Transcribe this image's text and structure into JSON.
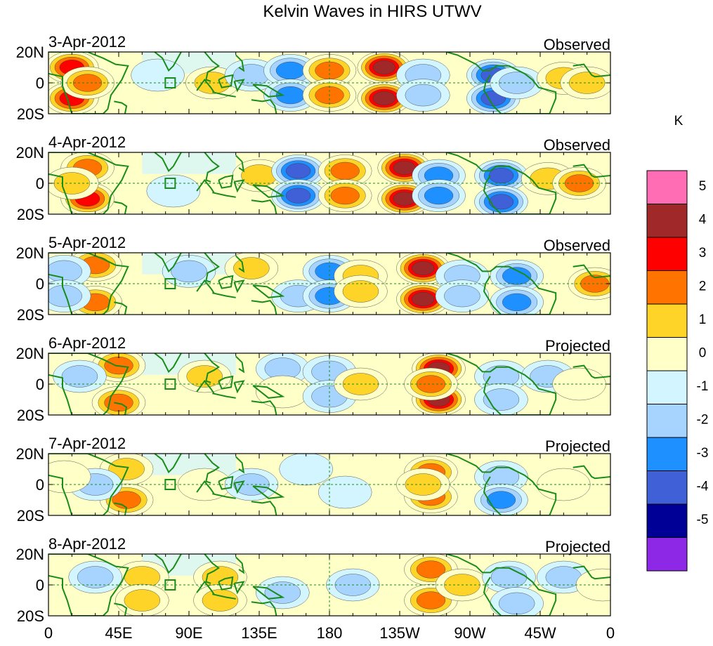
{
  "chart_data": {
    "type": "heatmap",
    "title": "Kelvin Waves in HIRS UTWV",
    "units": "K",
    "y_tick_labels": [
      "20N",
      "0",
      "20S"
    ],
    "y_range": [
      -20,
      20
    ],
    "x_tick_labels": [
      "0",
      "45E",
      "90E",
      "135E",
      "180",
      "135W",
      "90W",
      "45W",
      "0"
    ],
    "x_range": [
      0,
      360
    ],
    "colorbar": {
      "levels": [
        "5",
        "4",
        "3",
        "2",
        "1",
        "0",
        "-1",
        "-2",
        "-3",
        "-4",
        "-5"
      ],
      "colors": [
        "#ff6eb4",
        "#a02828",
        "#ff0000",
        "#ff7300",
        "#ffd428",
        "#ffffc8",
        "#d2f5ff",
        "#a6d4ff",
        "#1e90ff",
        "#4060d8",
        "#000096",
        "#8c28e6"
      ]
    },
    "panels": [
      {
        "date": "3-Apr-2012",
        "status": "Observed",
        "features": [
          {
            "lon": 15,
            "lat": 10,
            "v": 3.5
          },
          {
            "lon": 15,
            "lat": -10,
            "v": 3.5
          },
          {
            "lon": 25,
            "lat": 0,
            "v": 3
          },
          {
            "lon": 70,
            "lat": 5,
            "v": -1
          },
          {
            "lon": 105,
            "lat": 0,
            "v": 1.5
          },
          {
            "lon": 130,
            "lat": 5,
            "v": -1.5
          },
          {
            "lon": 155,
            "lat": 8,
            "v": -3
          },
          {
            "lon": 155,
            "lat": -8,
            "v": -3
          },
          {
            "lon": 180,
            "lat": 8,
            "v": 3
          },
          {
            "lon": 180,
            "lat": -8,
            "v": 3
          },
          {
            "lon": 215,
            "lat": 10,
            "v": 4.5
          },
          {
            "lon": 215,
            "lat": -10,
            "v": 4.5
          },
          {
            "lon": 240,
            "lat": 5,
            "v": -2
          },
          {
            "lon": 240,
            "lat": -8,
            "v": -2
          },
          {
            "lon": 285,
            "lat": 5,
            "v": -4
          },
          {
            "lon": 285,
            "lat": -10,
            "v": -4
          },
          {
            "lon": 300,
            "lat": 0,
            "v": -2
          },
          {
            "lon": 330,
            "lat": 3,
            "v": 1.5
          },
          {
            "lon": 345,
            "lat": 0,
            "v": 2
          }
        ]
      },
      {
        "date": "4-Apr-2012",
        "status": "Observed",
        "features": [
          {
            "lon": 25,
            "lat": 10,
            "v": 3
          },
          {
            "lon": 25,
            "lat": -10,
            "v": 3.5
          },
          {
            "lon": 15,
            "lat": 0,
            "v": 2
          },
          {
            "lon": 80,
            "lat": -5,
            "v": -1
          },
          {
            "lon": 135,
            "lat": 5,
            "v": 1.5
          },
          {
            "lon": 160,
            "lat": 8,
            "v": -3.5
          },
          {
            "lon": 160,
            "lat": -8,
            "v": -4
          },
          {
            "lon": 190,
            "lat": 8,
            "v": 3
          },
          {
            "lon": 190,
            "lat": -8,
            "v": 3
          },
          {
            "lon": 228,
            "lat": 10,
            "v": 5
          },
          {
            "lon": 228,
            "lat": -10,
            "v": 5
          },
          {
            "lon": 250,
            "lat": 5,
            "v": -2.5
          },
          {
            "lon": 250,
            "lat": -8,
            "v": -2.5
          },
          {
            "lon": 290,
            "lat": 5,
            "v": -3.5
          },
          {
            "lon": 290,
            "lat": -12,
            "v": -4
          },
          {
            "lon": 320,
            "lat": 3,
            "v": 1.5
          },
          {
            "lon": 340,
            "lat": 0,
            "v": 3
          }
        ]
      },
      {
        "date": "5-Apr-2012",
        "status": "Observed",
        "features": [
          {
            "lon": 30,
            "lat": 12,
            "v": 3
          },
          {
            "lon": 30,
            "lat": -12,
            "v": 3
          },
          {
            "lon": 10,
            "lat": 8,
            "v": -2
          },
          {
            "lon": 10,
            "lat": -8,
            "v": -2
          },
          {
            "lon": 90,
            "lat": 8,
            "v": -1.5
          },
          {
            "lon": 130,
            "lat": 10,
            "v": 1.5
          },
          {
            "lon": 160,
            "lat": -8,
            "v": -2
          },
          {
            "lon": 180,
            "lat": 8,
            "v": -3
          },
          {
            "lon": 180,
            "lat": -8,
            "v": -3
          },
          {
            "lon": 200,
            "lat": 5,
            "v": 2
          },
          {
            "lon": 200,
            "lat": -5,
            "v": 2
          },
          {
            "lon": 240,
            "lat": 10,
            "v": 4.5
          },
          {
            "lon": 240,
            "lat": -10,
            "v": 4.5
          },
          {
            "lon": 265,
            "lat": 5,
            "v": -2
          },
          {
            "lon": 265,
            "lat": -8,
            "v": -2
          },
          {
            "lon": 300,
            "lat": 5,
            "v": -3
          },
          {
            "lon": 300,
            "lat": -12,
            "v": -3
          },
          {
            "lon": 350,
            "lat": 0,
            "v": 2.5
          }
        ]
      },
      {
        "date": "6-Apr-2012",
        "status": "Projected",
        "features": [
          {
            "lon": 45,
            "lat": 12,
            "v": 2.5
          },
          {
            "lon": 45,
            "lat": -12,
            "v": 3
          },
          {
            "lon": 20,
            "lat": 5,
            "v": -1.5
          },
          {
            "lon": 100,
            "lat": 5,
            "v": 1.5
          },
          {
            "lon": 150,
            "lat": 10,
            "v": -2
          },
          {
            "lon": 150,
            "lat": -5,
            "v": 1
          },
          {
            "lon": 180,
            "lat": 8,
            "v": -2
          },
          {
            "lon": 180,
            "lat": -8,
            "v": -2
          },
          {
            "lon": 200,
            "lat": 0,
            "v": 1.5
          },
          {
            "lon": 250,
            "lat": 10,
            "v": 4.5
          },
          {
            "lon": 250,
            "lat": -10,
            "v": 4.5
          },
          {
            "lon": 245,
            "lat": 0,
            "v": 3
          },
          {
            "lon": 290,
            "lat": 5,
            "v": -2
          },
          {
            "lon": 290,
            "lat": -10,
            "v": -2
          },
          {
            "lon": 320,
            "lat": 5,
            "v": -1.5
          },
          {
            "lon": 340,
            "lat": 0,
            "v": 1
          }
        ]
      },
      {
        "date": "7-Apr-2012",
        "status": "Projected",
        "features": [
          {
            "lon": 50,
            "lat": 10,
            "v": 2
          },
          {
            "lon": 50,
            "lat": -10,
            "v": 2.5
          },
          {
            "lon": 30,
            "lat": 0,
            "v": -1.5
          },
          {
            "lon": 100,
            "lat": 0,
            "v": 1
          },
          {
            "lon": 130,
            "lat": 0,
            "v": -1.5
          },
          {
            "lon": 165,
            "lat": 10,
            "v": -1
          },
          {
            "lon": 190,
            "lat": -5,
            "v": -1
          },
          {
            "lon": 245,
            "lat": 8,
            "v": 3
          },
          {
            "lon": 245,
            "lat": -8,
            "v": 3
          },
          {
            "lon": 240,
            "lat": 0,
            "v": 2
          },
          {
            "lon": 290,
            "lat": 5,
            "v": -2
          },
          {
            "lon": 290,
            "lat": -10,
            "v": -2.5
          },
          {
            "lon": 330,
            "lat": 0,
            "v": 1
          },
          {
            "lon": 10,
            "lat": 5,
            "v": 1
          }
        ]
      },
      {
        "date": "8-Apr-2012",
        "status": "Projected",
        "features": [
          {
            "lon": 60,
            "lat": 5,
            "v": 1.5
          },
          {
            "lon": 60,
            "lat": -10,
            "v": 1.5
          },
          {
            "lon": 30,
            "lat": 5,
            "v": -2
          },
          {
            "lon": 110,
            "lat": 5,
            "v": 1.5
          },
          {
            "lon": 110,
            "lat": -10,
            "v": 2
          },
          {
            "lon": 150,
            "lat": -5,
            "v": -2
          },
          {
            "lon": 195,
            "lat": 0,
            "v": -1.5
          },
          {
            "lon": 245,
            "lat": 10,
            "v": 3
          },
          {
            "lon": 245,
            "lat": -10,
            "v": 3
          },
          {
            "lon": 265,
            "lat": 0,
            "v": 2
          },
          {
            "lon": 295,
            "lat": 5,
            "v": -1.5
          },
          {
            "lon": 300,
            "lat": -12,
            "v": -2
          },
          {
            "lon": 330,
            "lat": 5,
            "v": -2
          },
          {
            "lon": 355,
            "lat": 0,
            "v": 1
          }
        ]
      }
    ]
  }
}
